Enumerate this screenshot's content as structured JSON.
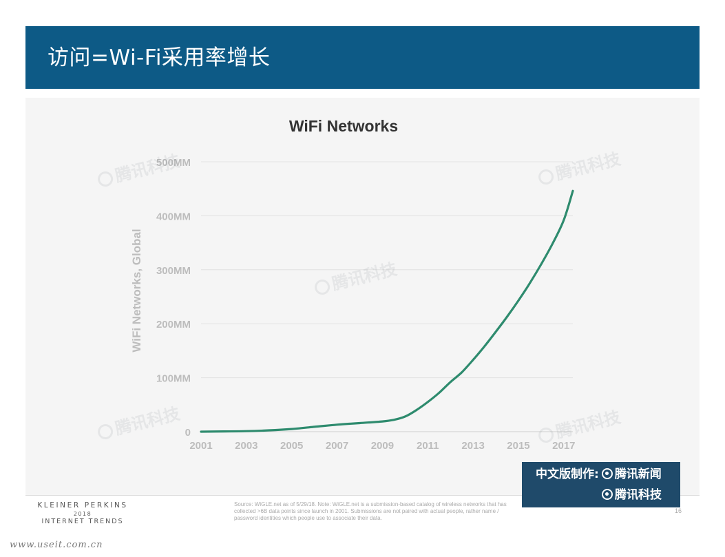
{
  "header": {
    "title": "访问=Wi-Fi采用率增长"
  },
  "chart_data": {
    "type": "line",
    "title": "WiFi Networks",
    "xlabel": "",
    "ylabel": "WiFi Networks, Global",
    "x_tick_labels": [
      "2001",
      "2003",
      "2005",
      "2007",
      "2009",
      "2011",
      "2013",
      "2015",
      "2017"
    ],
    "y_tick_labels": [
      "0",
      "100MM",
      "200MM",
      "300MM",
      "400MM",
      "500MM"
    ],
    "xlim": [
      2001,
      2017.4
    ],
    "ylim": [
      0,
      500
    ],
    "y_unit": "MM",
    "grid": true,
    "line_color": "#2e8b6e",
    "series": [
      {
        "x": [
          2001,
          2002,
          2003,
          2004,
          2005,
          2006,
          2007,
          2008,
          2009,
          2009.5,
          2010,
          2010.5,
          2011,
          2011.5,
          2012,
          2012.5,
          2013,
          2013.5,
          2014,
          2014.5,
          2015,
          2015.5,
          2016,
          2016.5,
          2017,
          2017.4
        ],
        "y": [
          0,
          0.5,
          1,
          2.5,
          5,
          9,
          13,
          16,
          19,
          22,
          28,
          40,
          55,
          72,
          92,
          110,
          133,
          158,
          185,
          213,
          243,
          275,
          310,
          348,
          392,
          446
        ]
      }
    ]
  },
  "source_note": "Source: WiGLE.net as of 5/29/18. Note: WiGLE.net is a submission-based catalog of wireless networks that has collected >6B data points since launch in 2001. Submissions are not paired with actual people, rather name / password identities which people use to associate their data.",
  "footer": {
    "brand_line1": "KLEINER PERKINS",
    "brand_line2": "2018",
    "brand_line3": "INTERNET TRENDS",
    "page_number": "16"
  },
  "credit": {
    "made_by": "中文版制作:",
    "news_name": "腾讯新闻",
    "tech_name": "腾讯科技"
  },
  "watermark_text": "腾讯科技",
  "site_url": "www.useit.com.cn",
  "colors": {
    "header_bg": "#0d5a86",
    "line": "#2e8b6e",
    "axis_text": "#bdbdbd",
    "credit_bg": "#1f4a6a"
  }
}
